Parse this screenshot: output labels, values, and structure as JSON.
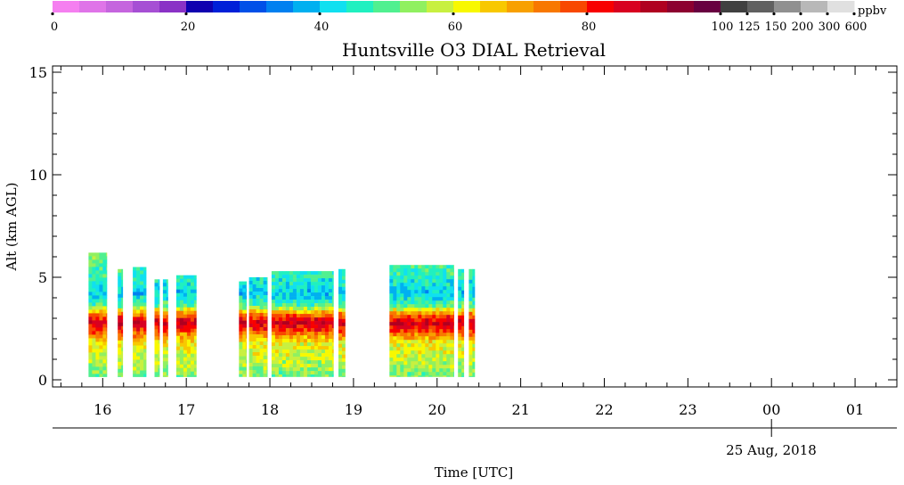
{
  "chart_data": {
    "type": "heatmap",
    "title": "Huntsville O3 DIAL Retrieval",
    "ylabel": "Alt (km AGL)",
    "xlabel": "Time [UTC]",
    "date_label": "25 Aug, 2018",
    "ylim": [
      0,
      15.5
    ],
    "y_ticks": [
      0,
      5,
      10,
      15
    ],
    "x_tick_labels": [
      "16",
      "17",
      "18",
      "19",
      "20",
      "21",
      "22",
      "23",
      "00",
      "01"
    ],
    "xlim_hours": [
      15.4,
      25.5
    ],
    "colorbar": {
      "unit": "ppbv",
      "tick_labels": [
        "0",
        "20",
        "40",
        "60",
        "80",
        "100",
        "125",
        "150",
        "200",
        "300",
        "600"
      ],
      "colors": [
        "#f57ff0",
        "#df74e8",
        "#c565de",
        "#a64fd4",
        "#8a32c6",
        "#1000b0",
        "#0020d8",
        "#0050e8",
        "#0080f0",
        "#00b0f0",
        "#10e0f0",
        "#20f0c0",
        "#50f090",
        "#90f060",
        "#c8f040",
        "#f8f800",
        "#f8c800",
        "#f8a000",
        "#f87800",
        "#f84800",
        "#f80000",
        "#d80020",
        "#b00020",
        "#8c0030",
        "#680040",
        "#404040",
        "#606060",
        "#909090",
        "#b8b8b8",
        "#e0e0e0"
      ]
    },
    "ozone_profile": {
      "altitude_km": [
        0.2,
        1.0,
        1.8,
        2.4,
        2.8,
        3.2,
        3.6,
        4.2,
        5.0,
        6.0
      ],
      "ppbv": [
        52,
        58,
        62,
        78,
        88,
        74,
        50,
        40,
        46,
        52
      ]
    },
    "segments": [
      {
        "start": 15.83,
        "end": 16.05,
        "top_km": 6.2
      },
      {
        "start": 16.18,
        "end": 16.24,
        "top_km": 5.4
      },
      {
        "start": 16.36,
        "end": 16.52,
        "top_km": 5.5
      },
      {
        "start": 16.62,
        "end": 16.68,
        "top_km": 4.9
      },
      {
        "start": 16.72,
        "end": 16.78,
        "top_km": 4.9
      },
      {
        "start": 16.88,
        "end": 17.12,
        "top_km": 5.1
      },
      {
        "start": 17.63,
        "end": 17.72,
        "top_km": 4.8
      },
      {
        "start": 17.75,
        "end": 17.97,
        "top_km": 5.0
      },
      {
        "start": 18.02,
        "end": 18.76,
        "top_km": 5.3
      },
      {
        "start": 18.82,
        "end": 18.9,
        "top_km": 5.4
      },
      {
        "start": 19.43,
        "end": 20.2,
        "top_km": 5.6
      },
      {
        "start": 20.25,
        "end": 20.32,
        "top_km": 5.4
      },
      {
        "start": 20.38,
        "end": 20.45,
        "top_km": 5.4
      }
    ]
  }
}
